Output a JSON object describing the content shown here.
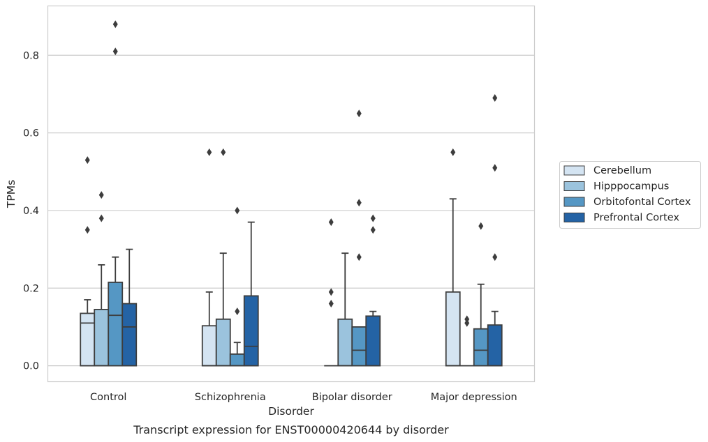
{
  "caption": "Transcript expression for ENST00000420644 by disorder",
  "chart_data": {
    "type": "box",
    "title": "",
    "xlabel": "Disorder",
    "ylabel": "TPMs",
    "ylim": [
      -0.042,
      0.928
    ],
    "yticks": [
      0.0,
      0.2,
      0.4,
      0.6,
      0.8
    ],
    "ytick_labels": [
      "0.0",
      "0.2",
      "0.4",
      "0.6",
      "0.8"
    ],
    "grid": "horizontal",
    "legend_position": "right",
    "categories": [
      "Control",
      "Schizophrenia",
      "Bipolar disorder",
      "Major depression"
    ],
    "series": [
      {
        "name": "Cerebellum",
        "color": "#d4e4f2",
        "boxes": [
          {
            "q1": 0.0,
            "median": 0.11,
            "q3": 0.135,
            "whisker_low": 0.0,
            "whisker_high": 0.17,
            "outliers": [
              0.35,
              0.53
            ]
          },
          {
            "q1": 0.0,
            "median": 0.0,
            "q3": 0.103,
            "whisker_low": 0.0,
            "whisker_high": 0.19,
            "outliers": [
              0.55
            ]
          },
          {
            "q1": 0.0,
            "median": 0.0,
            "q3": 0.0,
            "whisker_low": 0.0,
            "whisker_high": 0.0,
            "outliers": [
              0.16,
              0.19,
              0.37
            ]
          },
          {
            "q1": 0.0,
            "median": 0.0,
            "q3": 0.19,
            "whisker_low": 0.0,
            "whisker_high": 0.43,
            "outliers": [
              0.55
            ]
          }
        ]
      },
      {
        "name": "Hipppocampus",
        "color": "#9bc3dd",
        "boxes": [
          {
            "q1": 0.0,
            "median": 0.0,
            "q3": 0.145,
            "whisker_low": 0.0,
            "whisker_high": 0.26,
            "outliers": [
              0.38,
              0.44
            ]
          },
          {
            "q1": 0.0,
            "median": 0.0,
            "q3": 0.12,
            "whisker_low": 0.0,
            "whisker_high": 0.29,
            "outliers": [
              0.55
            ]
          },
          {
            "q1": 0.0,
            "median": 0.0,
            "q3": 0.12,
            "whisker_low": 0.0,
            "whisker_high": 0.29,
            "outliers": []
          },
          {
            "q1": 0.0,
            "median": 0.0,
            "q3": 0.0,
            "whisker_low": 0.0,
            "whisker_high": 0.0,
            "outliers": [
              0.11,
              0.12
            ]
          }
        ]
      },
      {
        "name": "Orbitofontal Cortex",
        "color": "#5597c4",
        "boxes": [
          {
            "q1": 0.0,
            "median": 0.13,
            "q3": 0.215,
            "whisker_low": 0.0,
            "whisker_high": 0.28,
            "outliers": [
              0.81,
              0.88
            ]
          },
          {
            "q1": 0.0,
            "median": 0.0,
            "q3": 0.03,
            "whisker_low": 0.0,
            "whisker_high": 0.06,
            "outliers": [
              0.14,
              0.4
            ]
          },
          {
            "q1": 0.0,
            "median": 0.04,
            "q3": 0.1,
            "whisker_low": 0.0,
            "whisker_high": 0.1,
            "outliers": [
              0.28,
              0.42,
              0.65
            ]
          },
          {
            "q1": 0.0,
            "median": 0.04,
            "q3": 0.095,
            "whisker_low": 0.0,
            "whisker_high": 0.21,
            "outliers": [
              0.36
            ]
          }
        ]
      },
      {
        "name": "Prefrontal Cortex",
        "color": "#2463a5",
        "boxes": [
          {
            "q1": 0.0,
            "median": 0.1,
            "q3": 0.16,
            "whisker_low": 0.0,
            "whisker_high": 0.3,
            "outliers": []
          },
          {
            "q1": 0.0,
            "median": 0.05,
            "q3": 0.18,
            "whisker_low": 0.0,
            "whisker_high": 0.37,
            "outliers": []
          },
          {
            "q1": 0.0,
            "median": 0.0,
            "q3": 0.128,
            "whisker_low": 0.0,
            "whisker_high": 0.14,
            "outliers": [
              0.35,
              0.38
            ]
          },
          {
            "q1": 0.0,
            "median": 0.0,
            "q3": 0.105,
            "whisker_low": 0.0,
            "whisker_high": 0.14,
            "outliers": [
              0.28,
              0.51,
              0.69
            ]
          }
        ]
      }
    ],
    "style": {
      "edge_color": "#3d3d3d",
      "grid_color": "#cccccc",
      "frame_color": "#cccccc"
    }
  }
}
